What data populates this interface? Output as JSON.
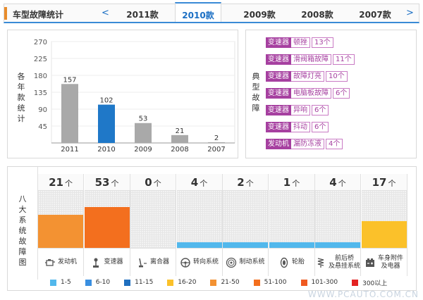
{
  "header": {
    "title": "车型故障统计",
    "prev_arrow": "<",
    "next_arrow": ">",
    "tabs": [
      "2011款",
      "2010款",
      "2009款",
      "2008款",
      "2007款"
    ],
    "active_tab": "2010款"
  },
  "chart_data": {
    "type": "bar",
    "title": "各年款统计",
    "ylabel": "各年款统计",
    "categories": [
      "2011",
      "2010",
      "2009",
      "2008",
      "2007"
    ],
    "values": [
      157,
      102,
      53,
      21,
      2
    ],
    "highlight": "2010",
    "yticks": [
      45,
      90,
      135,
      180,
      225,
      270
    ],
    "ylim": [
      0,
      270
    ],
    "colors": {
      "normal": "#a9a9a9",
      "highlight": "#1f78c8"
    }
  },
  "typical_faults": {
    "label": "典型故障",
    "items": [
      {
        "tag": "变速器",
        "name": "顿挫",
        "count": "13个"
      },
      {
        "tag": "变速器",
        "name": "滑阀箱故障",
        "count": "11个"
      },
      {
        "tag": "变速器",
        "name": "故障灯亮",
        "count": "10个"
      },
      {
        "tag": "变速器",
        "name": "电脑板故障",
        "count": "6个"
      },
      {
        "tag": "变速器",
        "name": "异响",
        "count": "6个"
      },
      {
        "tag": "变速器",
        "name": "抖动",
        "count": "6个"
      },
      {
        "tag": "发动机",
        "name": "漏防冻液",
        "count": "4个"
      }
    ]
  },
  "systems": {
    "label": "八大系统故障图",
    "unit": "个",
    "items": [
      {
        "name": "发动机",
        "count": "21",
        "level": 0.58,
        "color": "#f39232",
        "icon": "engine-icon"
      },
      {
        "name": "变速器",
        "count": "53",
        "level": 0.72,
        "color": "#f36f1e",
        "icon": "gearshift-icon"
      },
      {
        "name": "离合器",
        "count": "0",
        "level": 0,
        "color": "#52b8ec",
        "icon": "clutch-icon"
      },
      {
        "name": "转向系统",
        "count": "4",
        "level": 0.1,
        "color": "#52b8ec",
        "icon": "steering-wheel-icon"
      },
      {
        "name": "制动系统",
        "count": "2",
        "level": 0.1,
        "color": "#52b8ec",
        "icon": "brake-disc-icon"
      },
      {
        "name": "轮胎",
        "count": "1",
        "level": 0.1,
        "color": "#52b8ec",
        "icon": "tire-icon"
      },
      {
        "name": "前后桥及悬挂系统",
        "count": "4",
        "level": 0.1,
        "color": "#52b8ec",
        "icon": "suspension-icon"
      },
      {
        "name": "车身附件及电器",
        "count": "17",
        "level": 0.47,
        "color": "#fbc12a",
        "icon": "body-electrics-icon"
      }
    ]
  },
  "legend": [
    {
      "label": "1-5",
      "color": "#52b8ec"
    },
    {
      "label": "6-10",
      "color": "#3a8fe0"
    },
    {
      "label": "11-15",
      "color": "#1f6fbf"
    },
    {
      "label": "16-20",
      "color": "#fbc12a"
    },
    {
      "label": "21-50",
      "color": "#f39232"
    },
    {
      "label": "51-100",
      "color": "#f36f1e"
    },
    {
      "label": "101-300",
      "color": "#ef5a21"
    },
    {
      "label": "300以上",
      "color": "#e32222"
    }
  ],
  "watermark": "WWW.PCAUTO.COM.CN"
}
